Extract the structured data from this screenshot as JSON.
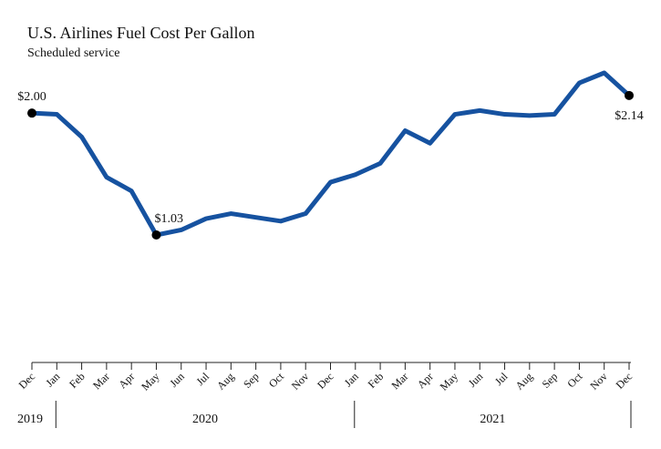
{
  "chart_data": {
    "type": "line",
    "title": "U.S. Airlines Fuel Cost Per Gallon",
    "subtitle": "Scheduled service",
    "categories": [
      "Dec",
      "Jan",
      "Feb",
      "Mar",
      "Apr",
      "May",
      "Jun",
      "Jul",
      "Aug",
      "Sep",
      "Oct",
      "Nov",
      "Dec",
      "Jan",
      "Feb",
      "Mar",
      "Apr",
      "May",
      "Jun",
      "Jul",
      "Aug",
      "Sep",
      "Oct",
      "Nov",
      "Dec"
    ],
    "year_labels": [
      "2019",
      "2020",
      "2021"
    ],
    "series": [
      {
        "name": "Fuel cost per gallon",
        "color": "#1652a0",
        "values": [
          2.0,
          1.99,
          1.81,
          1.49,
          1.38,
          1.03,
          1.07,
          1.16,
          1.2,
          1.17,
          1.14,
          1.2,
          1.45,
          1.51,
          1.6,
          1.86,
          1.76,
          1.99,
          2.02,
          1.99,
          1.98,
          1.99,
          2.24,
          2.32,
          2.14
        ],
        "value_labels": [
          "$2.00",
          null,
          null,
          null,
          null,
          "$1.03",
          null,
          null,
          null,
          null,
          null,
          null,
          null,
          null,
          null,
          null,
          null,
          null,
          null,
          null,
          null,
          null,
          null,
          null,
          "$2.14"
        ]
      }
    ]
  }
}
